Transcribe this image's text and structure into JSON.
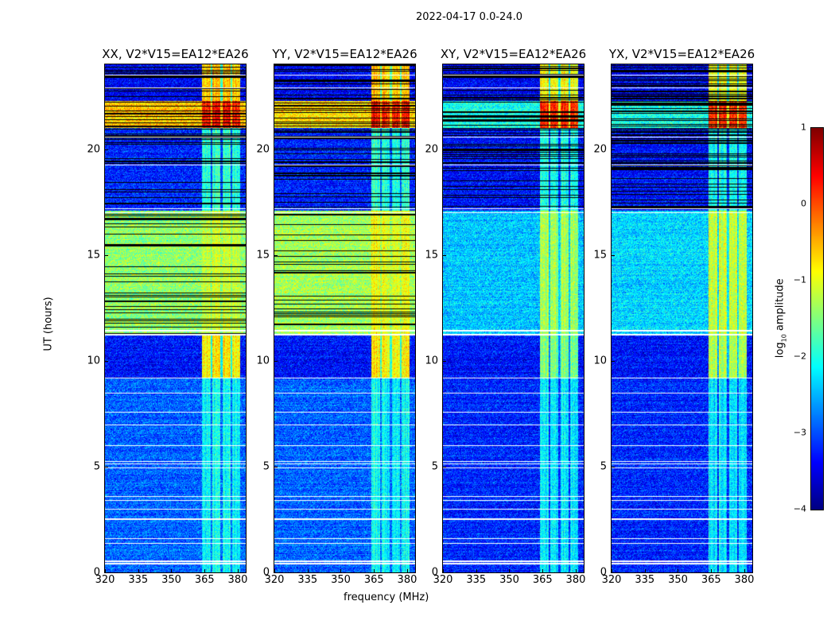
{
  "figure": {
    "suptitle": "2022-04-17 0.0-24.0"
  },
  "chart_data": {
    "type": "heatmap",
    "xlabel": "frequency (MHz)",
    "ylabel": "UT (hours)",
    "xlim": [
      320,
      383.6
    ],
    "ylim": [
      0,
      24
    ],
    "xticks": [
      "320",
      "335",
      "350",
      "365",
      "380"
    ],
    "xtick_values": [
      320,
      335,
      350,
      365,
      380
    ],
    "yticks": [
      "0",
      "5",
      "10",
      "15",
      "20"
    ],
    "ytick_values": [
      0,
      5,
      10,
      15,
      20
    ],
    "colorbar": {
      "label": "log₁₀ amplitude",
      "label_main": "log",
      "label_sub": "10",
      "label_rest": " amplitude",
      "range": [
        -4,
        1
      ],
      "ticks": [
        "1",
        "0",
        "−1",
        "−2",
        "−3",
        "−4"
      ],
      "tick_values": [
        1,
        0,
        -1,
        -2,
        -3,
        -4
      ],
      "colormap": "jet"
    },
    "rfi_band_mhz": [
      363.5,
      381
    ],
    "flagged_rows_hours": [
      0.45,
      0.55,
      1.4,
      1.6,
      2.5,
      2.55,
      3.0,
      3.4,
      3.6,
      4.95,
      5.15,
      5.25,
      6.0,
      7.0,
      7.6,
      8.5,
      9.2,
      11.25,
      11.45,
      17.0,
      17.2,
      19.25,
      20.6,
      22.9,
      23.5
    ],
    "panels": [
      {
        "title": "XX, V2*V15=EA12*EA26",
        "segments": [
          {
            "t0": 0,
            "t1": 9.2,
            "base": -2.9,
            "rfi": -2.1
          },
          {
            "t0": 9.2,
            "t1": 11.3,
            "base": -3.3,
            "rfi": -0.8
          },
          {
            "t0": 11.3,
            "t1": 17.1,
            "base": -1.4,
            "rfi": -1.2
          },
          {
            "t0": 17.1,
            "t1": 21.0,
            "base": -3.2,
            "rfi": -1.9
          },
          {
            "t0": 21.0,
            "t1": 22.3,
            "base": -0.6,
            "rfi": 0.3
          },
          {
            "t0": 22.3,
            "t1": 24,
            "base": -3.4,
            "rfi": -0.6
          }
        ]
      },
      {
        "title": "YY, V2*V15=EA12*EA26",
        "segments": [
          {
            "t0": 0,
            "t1": 9.2,
            "base": -2.9,
            "rfi": -2.1
          },
          {
            "t0": 9.2,
            "t1": 11.3,
            "base": -3.3,
            "rfi": -0.8
          },
          {
            "t0": 11.3,
            "t1": 17.1,
            "base": -1.3,
            "rfi": -1.0
          },
          {
            "t0": 17.1,
            "t1": 21.0,
            "base": -3.2,
            "rfi": -1.9
          },
          {
            "t0": 21.0,
            "t1": 22.3,
            "base": -0.7,
            "rfi": 0.3
          },
          {
            "t0": 22.3,
            "t1": 24,
            "base": -3.4,
            "rfi": -0.6
          }
        ]
      },
      {
        "title": "XY, V2*V15=EA12*EA26",
        "segments": [
          {
            "t0": 0,
            "t1": 9.2,
            "base": -3.2,
            "rfi": -2.2
          },
          {
            "t0": 9.2,
            "t1": 11.3,
            "base": -3.3,
            "rfi": -1.5
          },
          {
            "t0": 11.3,
            "t1": 17.1,
            "base": -2.4,
            "rfi": -1.3
          },
          {
            "t0": 17.1,
            "t1": 21.0,
            "base": -3.3,
            "rfi": -2.0
          },
          {
            "t0": 21.0,
            "t1": 22.3,
            "base": -2.0,
            "rfi": 0.2
          },
          {
            "t0": 22.3,
            "t1": 24,
            "base": -3.4,
            "rfi": -0.9
          }
        ]
      },
      {
        "title": "YX, V2*V15=EA12*EA26",
        "segments": [
          {
            "t0": 0,
            "t1": 9.2,
            "base": -3.2,
            "rfi": -2.2
          },
          {
            "t0": 9.2,
            "t1": 11.3,
            "base": -3.3,
            "rfi": -1.2
          },
          {
            "t0": 11.3,
            "t1": 17.1,
            "base": -2.3,
            "rfi": -1.1
          },
          {
            "t0": 17.1,
            "t1": 21.0,
            "base": -3.3,
            "rfi": -2.0
          },
          {
            "t0": 21.0,
            "t1": 22.3,
            "base": -2.0,
            "rfi": 0.2
          },
          {
            "t0": 22.3,
            "t1": 24,
            "base": -3.4,
            "rfi": -0.9
          }
        ]
      }
    ]
  }
}
